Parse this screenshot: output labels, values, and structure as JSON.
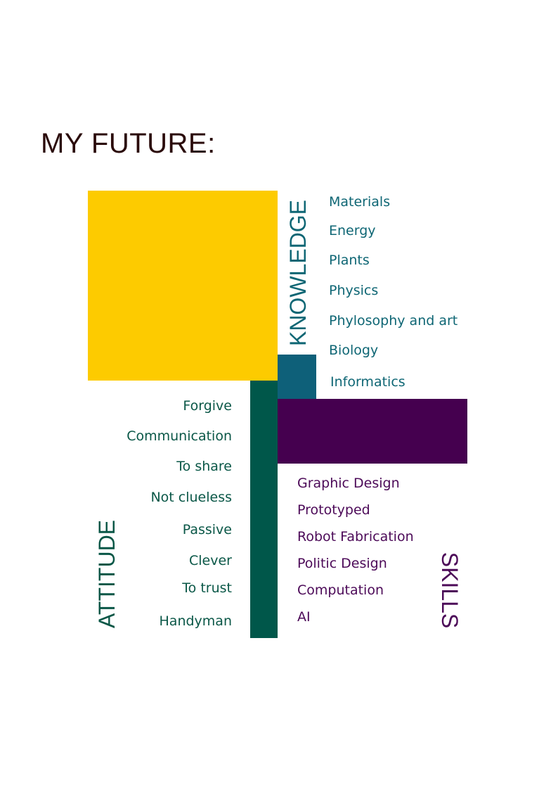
{
  "title": "MY FUTURE:",
  "colors": {
    "title": "#2a0a0a",
    "yellow": "#fdcb00",
    "teal": "#0e6079",
    "green": "#00574a",
    "purple": "#45004f",
    "knowledge_text": "#0e6674",
    "attitude_text": "#0a5747",
    "skills_text": "#4c0a58"
  },
  "knowledge": {
    "label": "KNOWLEDGE",
    "items": [
      "Materials",
      "Energy",
      "Plants",
      "Physics",
      "Phylosophy and art",
      "Biology",
      "Informatics"
    ]
  },
  "attitude": {
    "label": "ATTITUDE",
    "items": [
      "Forgive",
      "Communication",
      "To share",
      "Not clueless",
      "Passive",
      "Clever",
      "To trust",
      "Handyman"
    ]
  },
  "skills": {
    "label": "SKILLS",
    "items": [
      "Graphic Design",
      "Prototyped",
      "Robot Fabrication",
      "Politic Design",
      "Computation",
      "AI"
    ]
  }
}
